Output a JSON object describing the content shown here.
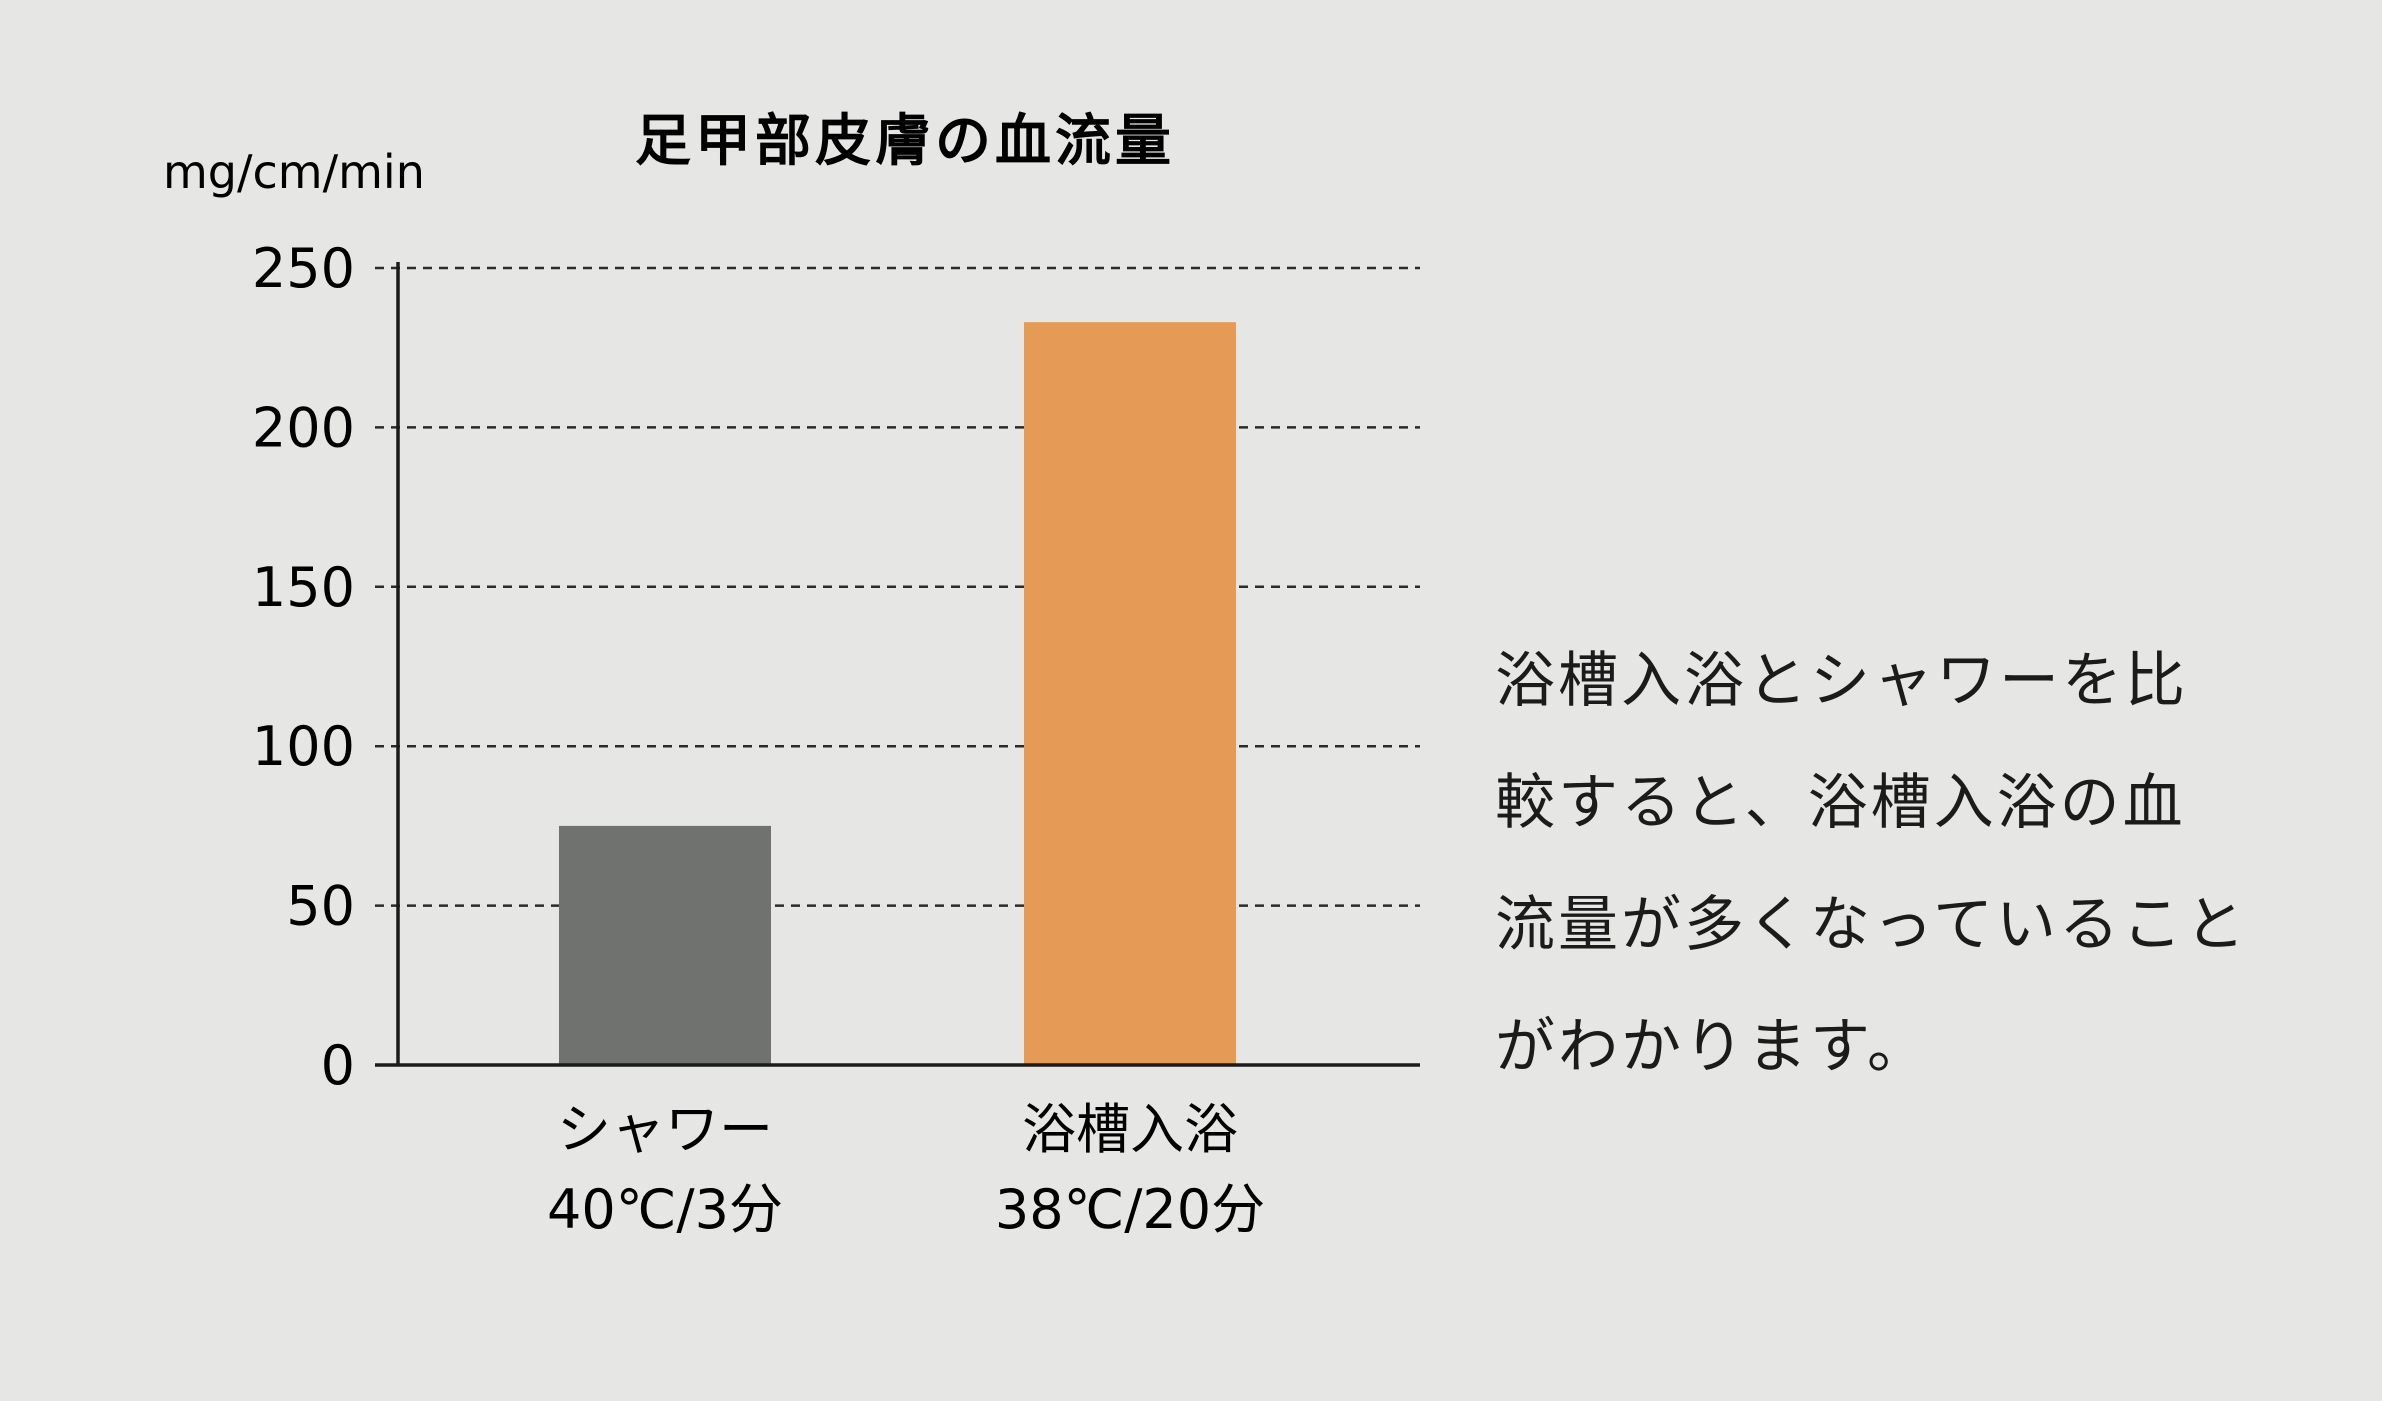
{
  "chart_data": {
    "type": "bar",
    "title": "足甲部皮膚の血流量",
    "ylabel": "mg/cm/min",
    "xlabel": "",
    "ylim": [
      0,
      250
    ],
    "yticks": [
      0,
      50,
      100,
      150,
      200,
      250
    ],
    "grid": true,
    "categories": [
      {
        "name": "シャワー",
        "sub": "40℃/3分"
      },
      {
        "name": "浴槽入浴",
        "sub": "38℃/20分"
      }
    ],
    "values": [
      75,
      233
    ],
    "colors": [
      "#6f726f",
      "#e59a55"
    ]
  },
  "description": {
    "lines": [
      "浴槽入浴とシャワーを比",
      "較すると、浴槽入浴の血",
      "流量が多くなっていること",
      "がわかります。"
    ]
  }
}
